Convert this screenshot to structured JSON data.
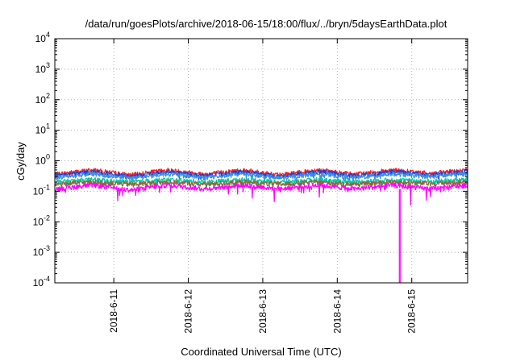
{
  "chart_data": {
    "type": "line",
    "title": "/data/run/goesPlots/archive/2018-06-15/18:00/flux/../bryn/5daysEarthData.plot",
    "xlabel": "Coordinated Universal Time (UTC)",
    "ylabel": "cGy/day",
    "yscale": "log",
    "ylim": [
      0.0001,
      10000
    ],
    "yticks": [
      {
        "value": 0.0001,
        "base": "10",
        "exp": "-4"
      },
      {
        "value": 0.001,
        "base": "10",
        "exp": "-3"
      },
      {
        "value": 0.01,
        "base": "10",
        "exp": "-2"
      },
      {
        "value": 0.1,
        "base": "10",
        "exp": "-1"
      },
      {
        "value": 1,
        "base": "10",
        "exp": "0"
      },
      {
        "value": 10,
        "base": "10",
        "exp": "1"
      },
      {
        "value": 100,
        "base": "10",
        "exp": "2"
      },
      {
        "value": 1000,
        "base": "10",
        "exp": "3"
      },
      {
        "value": 10000,
        "base": "10",
        "exp": "4"
      }
    ],
    "xlim": [
      "2018-06-10 05:00",
      "2018-06-15 18:00"
    ],
    "xticks": [
      "2018-6-11",
      "2018-6-12",
      "2018-6-13",
      "2018-6-14",
      "2018-6-15"
    ],
    "grid": true,
    "series": [
      {
        "color": "#ff2020",
        "values": [
          0.36,
          0.5,
          0.34,
          0.5,
          0.36,
          0.5,
          0.34,
          0.5,
          0.36,
          0.5,
          0.38,
          0.5
        ]
      },
      {
        "color": "#1f3fd0",
        "values": [
          0.32,
          0.44,
          0.3,
          0.44,
          0.32,
          0.44,
          0.3,
          0.44,
          0.32,
          0.44,
          0.34,
          0.44
        ]
      },
      {
        "color": "#3a8fe8",
        "values": [
          0.28,
          0.38,
          0.27,
          0.38,
          0.28,
          0.38,
          0.27,
          0.38,
          0.28,
          0.38,
          0.3,
          0.38
        ]
      },
      {
        "color": "#00c9a7",
        "values": [
          0.2,
          0.24,
          0.2,
          0.24,
          0.2,
          0.24,
          0.2,
          0.24,
          0.2,
          0.24,
          0.21,
          0.24
        ]
      },
      {
        "color": "#8b6b3b",
        "values": [
          0.17,
          0.2,
          0.17,
          0.2,
          0.17,
          0.2,
          0.17,
          0.2,
          0.17,
          0.2,
          0.18,
          0.2
        ]
      },
      {
        "color": "#ff00ff",
        "values": [
          0.12,
          0.16,
          0.11,
          0.16,
          0.12,
          0.16,
          0.12,
          0.16,
          0.12,
          0.16,
          0.12,
          0.16
        ]
      }
    ]
  }
}
